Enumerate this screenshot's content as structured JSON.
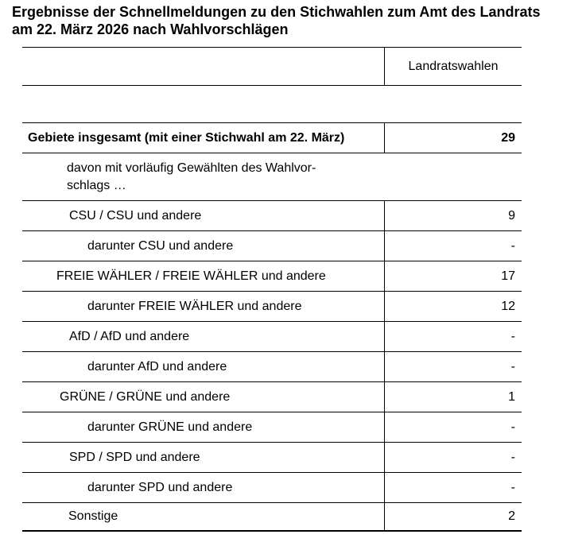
{
  "title": "Ergebnisse der Schnellmeldungen zu den Stichwahlen zum Amt des Landrats\nam 22. März 2026 nach Wahlvorschlägen",
  "table": {
    "column_header": "Landratswahlen",
    "rows": [
      {
        "label": "Gebiete insgesamt (mit einer Stichwahl am 22. März)",
        "value": "29",
        "bold": true,
        "level": 0,
        "divider": true
      },
      {
        "label": "davon mit vorläufig Gewählten des Wahlvor-\nschlags …",
        "value": "",
        "bold": false,
        "level": 1,
        "indent": 56,
        "divider": false,
        "wrap": true
      },
      {
        "label": "CSU / CSU und andere",
        "value": "9",
        "bold": false,
        "level": 1,
        "divider": true
      },
      {
        "label": "darunter CSU und andere",
        "value": "-",
        "bold": false,
        "level": 2,
        "divider": true
      },
      {
        "label": "FREIE WÄHLER / FREIE WÄHLER und andere",
        "value": "17",
        "bold": false,
        "level": 1,
        "indent": 43,
        "divider": true
      },
      {
        "label": "darunter FREIE WÄHLER und andere",
        "value": "12",
        "bold": false,
        "level": 2,
        "divider": true
      },
      {
        "label": "AfD / AfD und andere",
        "value": "-",
        "bold": false,
        "level": 1,
        "divider": true
      },
      {
        "label": "darunter AfD und andere",
        "value": "-",
        "bold": false,
        "level": 2,
        "divider": true
      },
      {
        "label": "GRÜNE / GRÜNE und andere",
        "value": "1",
        "bold": false,
        "level": 1,
        "indent": 47,
        "divider": true
      },
      {
        "label": "darunter GRÜNE und andere",
        "value": "-",
        "bold": false,
        "level": 2,
        "divider": true
      },
      {
        "label": "SPD / SPD und andere",
        "value": "-",
        "bold": false,
        "level": 1,
        "divider": true
      },
      {
        "label": "darunter SPD und andere",
        "value": "-",
        "bold": false,
        "level": 2,
        "divider": true
      },
      {
        "label": "Sonstige",
        "value": "2",
        "bold": false,
        "level": 1,
        "indent": 58,
        "divider": true
      }
    ]
  }
}
